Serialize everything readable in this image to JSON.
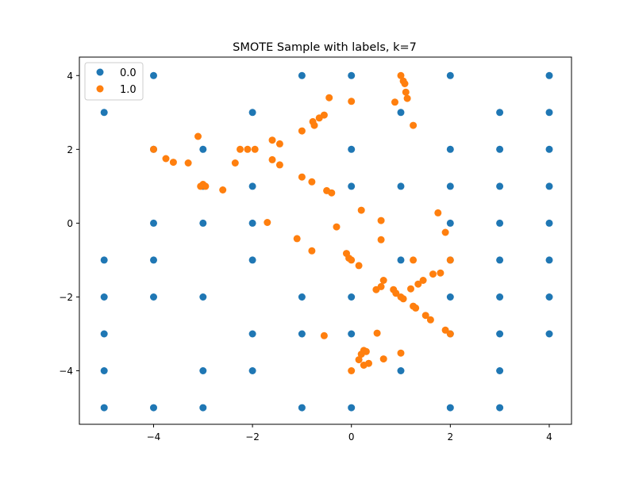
{
  "chart_data": {
    "type": "scatter",
    "title": "SMOTE Sample with labels, k=7",
    "xlabel": "",
    "ylabel": "",
    "xlim": [
      -5.5,
      4.45
    ],
    "ylim": [
      -5.45,
      4.5
    ],
    "xticks": [
      -4,
      -2,
      0,
      2,
      4
    ],
    "yticks": [
      -4,
      -2,
      0,
      2,
      4
    ],
    "xtick_labels": [
      "−4",
      "−2",
      "0",
      "2",
      "4"
    ],
    "ytick_labels": [
      "−4",
      "−2",
      "0",
      "2",
      "4"
    ],
    "grid": false,
    "legend_position": "top-left",
    "series": [
      {
        "name": "0.0",
        "color": "#1f77b4",
        "points": [
          [
            -4,
            4
          ],
          [
            -1,
            4
          ],
          [
            0,
            4
          ],
          [
            2,
            4
          ],
          [
            4,
            4
          ],
          [
            -5,
            3
          ],
          [
            -2,
            3
          ],
          [
            1,
            3
          ],
          [
            3,
            3
          ],
          [
            4,
            3
          ],
          [
            -4,
            2
          ],
          [
            -3,
            2
          ],
          [
            0,
            2
          ],
          [
            2,
            2
          ],
          [
            3,
            2
          ],
          [
            4,
            2
          ],
          [
            -3,
            1
          ],
          [
            -2,
            1
          ],
          [
            0,
            1
          ],
          [
            1,
            1
          ],
          [
            2,
            1
          ],
          [
            3,
            1
          ],
          [
            4,
            1
          ],
          [
            -4,
            0
          ],
          [
            -3,
            0
          ],
          [
            -2,
            0
          ],
          [
            2,
            0
          ],
          [
            3,
            0
          ],
          [
            4,
            0
          ],
          [
            -5,
            -1
          ],
          [
            -4,
            -1
          ],
          [
            -2,
            -1
          ],
          [
            1,
            -1
          ],
          [
            2,
            -1
          ],
          [
            3,
            -1
          ],
          [
            4,
            -1
          ],
          [
            -5,
            -2
          ],
          [
            -4,
            -2
          ],
          [
            -3,
            -2
          ],
          [
            -1,
            -2
          ],
          [
            0,
            -2
          ],
          [
            2,
            -2
          ],
          [
            3,
            -2
          ],
          [
            4,
            -2
          ],
          [
            -5,
            -3
          ],
          [
            -2,
            -3
          ],
          [
            -1,
            -3
          ],
          [
            0,
            -3
          ],
          [
            2,
            -3
          ],
          [
            3,
            -3
          ],
          [
            4,
            -3
          ],
          [
            -5,
            -4
          ],
          [
            -3,
            -4
          ],
          [
            -2,
            -4
          ],
          [
            1,
            -4
          ],
          [
            3,
            -4
          ],
          [
            -5,
            -5
          ],
          [
            -4,
            -5
          ],
          [
            -3,
            -5
          ],
          [
            -1,
            -5
          ],
          [
            0,
            -5
          ],
          [
            2,
            -5
          ],
          [
            3,
            -5
          ]
        ]
      },
      {
        "name": "1.0",
        "color": "#ff7f0e",
        "points": [
          [
            1.0,
            4.0
          ],
          [
            1.05,
            3.85
          ],
          [
            1.08,
            3.78
          ],
          [
            1.1,
            3.55
          ],
          [
            1.13,
            3.38
          ],
          [
            0.88,
            3.28
          ],
          [
            1.25,
            2.65
          ],
          [
            -0.45,
            3.4
          ],
          [
            0.0,
            3.3
          ],
          [
            -0.55,
            2.93
          ],
          [
            -0.65,
            2.85
          ],
          [
            -0.78,
            2.75
          ],
          [
            -0.75,
            2.65
          ],
          [
            -1.0,
            2.5
          ],
          [
            -3.1,
            2.35
          ],
          [
            -1.6,
            2.25
          ],
          [
            -1.45,
            2.15
          ],
          [
            -4.0,
            2.0
          ],
          [
            -2.25,
            2.0
          ],
          [
            -2.1,
            2.0
          ],
          [
            -1.95,
            2.0
          ],
          [
            -3.75,
            1.75
          ],
          [
            -3.6,
            1.65
          ],
          [
            -3.3,
            1.63
          ],
          [
            -2.35,
            1.63
          ],
          [
            -1.6,
            1.72
          ],
          [
            -1.45,
            1.58
          ],
          [
            -1.0,
            1.25
          ],
          [
            -0.8,
            1.12
          ],
          [
            -3.0,
            1.05
          ],
          [
            -2.95,
            1.0
          ],
          [
            -3.05,
            1.0
          ],
          [
            -2.6,
            0.9
          ],
          [
            -0.5,
            0.88
          ],
          [
            -0.4,
            0.82
          ],
          [
            0.2,
            0.35
          ],
          [
            0.6,
            0.07
          ],
          [
            -1.7,
            0.02
          ],
          [
            -0.3,
            -0.1
          ],
          [
            1.75,
            0.28
          ],
          [
            1.9,
            -0.25
          ],
          [
            -1.1,
            -0.42
          ],
          [
            0.6,
            -0.45
          ],
          [
            -0.8,
            -0.75
          ],
          [
            -0.1,
            -0.82
          ],
          [
            -0.05,
            -0.95
          ],
          [
            0.0,
            -1.0
          ],
          [
            0.15,
            -1.15
          ],
          [
            1.25,
            -1.0
          ],
          [
            2.0,
            -1.0
          ],
          [
            0.65,
            -1.55
          ],
          [
            1.45,
            -1.55
          ],
          [
            1.35,
            -1.65
          ],
          [
            0.6,
            -1.72
          ],
          [
            0.5,
            -1.8
          ],
          [
            1.2,
            -1.78
          ],
          [
            1.65,
            -1.38
          ],
          [
            1.8,
            -1.35
          ],
          [
            0.85,
            -1.8
          ],
          [
            0.9,
            -1.9
          ],
          [
            1.0,
            -2.0
          ],
          [
            1.05,
            -2.05
          ],
          [
            1.25,
            -2.25
          ],
          [
            1.3,
            -2.3
          ],
          [
            1.5,
            -2.5
          ],
          [
            1.6,
            -2.62
          ],
          [
            1.9,
            -2.9
          ],
          [
            2.0,
            -3.0
          ],
          [
            0.52,
            -2.98
          ],
          [
            -0.55,
            -3.05
          ],
          [
            0.25,
            -3.45
          ],
          [
            0.3,
            -3.48
          ],
          [
            0.2,
            -3.55
          ],
          [
            1.0,
            -3.52
          ],
          [
            0.15,
            -3.7
          ],
          [
            0.65,
            -3.68
          ],
          [
            0.35,
            -3.8
          ],
          [
            0.25,
            -3.85
          ],
          [
            0.0,
            -4.0
          ]
        ]
      }
    ]
  }
}
